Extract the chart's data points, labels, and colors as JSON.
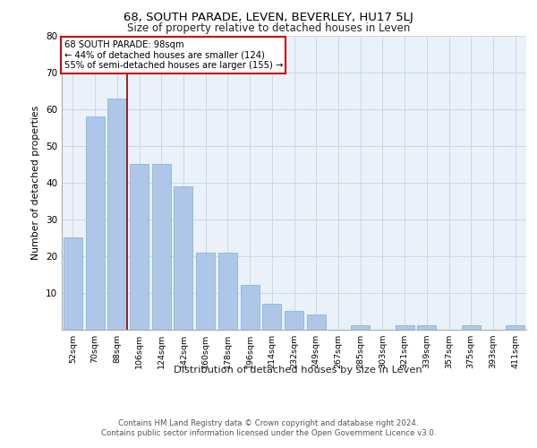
{
  "title": "68, SOUTH PARADE, LEVEN, BEVERLEY, HU17 5LJ",
  "subtitle": "Size of property relative to detached houses in Leven",
  "xlabel": "Distribution of detached houses by size in Leven",
  "ylabel": "Number of detached properties",
  "categories": [
    "52sqm",
    "70sqm",
    "88sqm",
    "106sqm",
    "124sqm",
    "142sqm",
    "160sqm",
    "178sqm",
    "196sqm",
    "214sqm",
    "232sqm",
    "249sqm",
    "267sqm",
    "285sqm",
    "303sqm",
    "321sqm",
    "339sqm",
    "357sqm",
    "375sqm",
    "393sqm",
    "411sqm"
  ],
  "values": [
    25,
    58,
    63,
    45,
    45,
    39,
    21,
    21,
    12,
    7,
    5,
    4,
    0,
    1,
    0,
    1,
    1,
    0,
    1,
    0,
    1
  ],
  "bar_color": "#aec6e8",
  "bar_edge_color": "#7aafd4",
  "property_line_color": "#8b0000",
  "annotation_text": "68 SOUTH PARADE: 98sqm\n← 44% of detached houses are smaller (124)\n55% of semi-detached houses are larger (155) →",
  "annotation_box_edge_color": "#cc0000",
  "ylim": [
    0,
    80
  ],
  "yticks": [
    0,
    10,
    20,
    30,
    40,
    50,
    60,
    70,
    80
  ],
  "grid_color": "#c8d8eb",
  "bg_color": "#eaf1f8",
  "footer": "Contains HM Land Registry data © Crown copyright and database right 2024.\nContains public sector information licensed under the Open Government Licence v3.0.",
  "property_line_xindex": 2.45
}
